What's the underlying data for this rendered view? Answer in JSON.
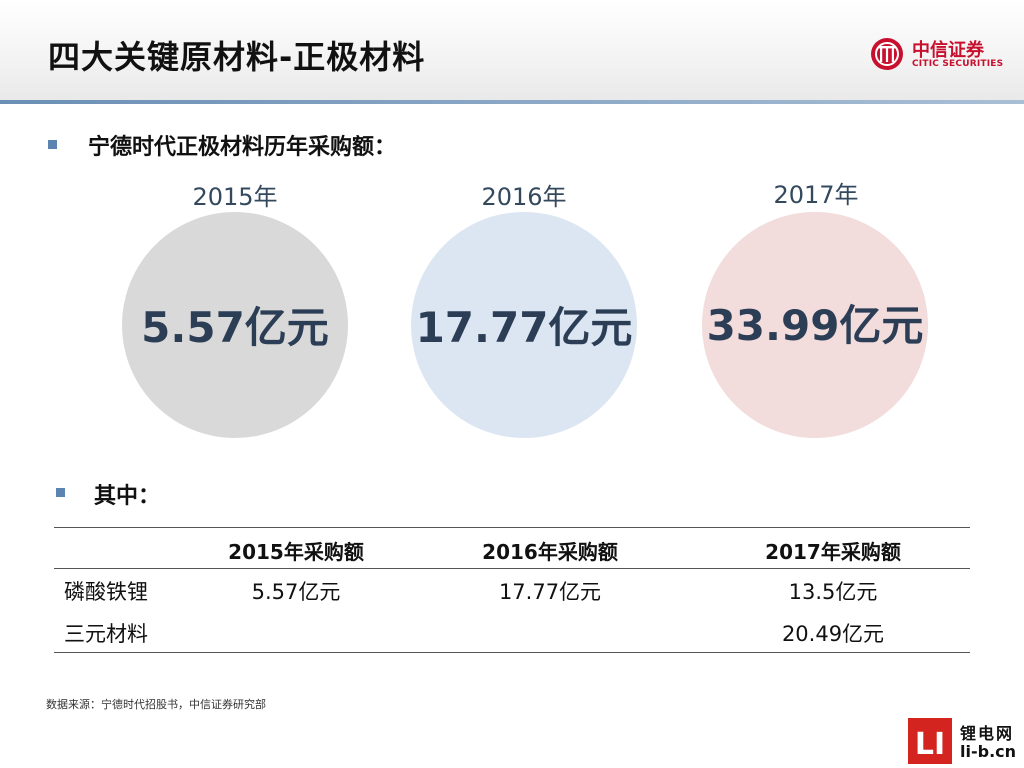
{
  "header": {
    "title": "四大关键原材料-正极材料",
    "logo": {
      "cn": "中信证券",
      "en": "CITIC SECURITIES"
    }
  },
  "colors": {
    "accent_line": "#6b8fb5",
    "bullet": "#5b84b1",
    "logo_red": "#c8102e",
    "circle_2015": "#d9d9d9",
    "circle_2016": "#dce6f2",
    "circle_2017": "#f2dcdc"
  },
  "section1": {
    "heading": "宁德时代正极材料历年采购额：",
    "circles": [
      {
        "year": "2015年",
        "value": "5.57亿元"
      },
      {
        "year": "2016年",
        "value": "17.77亿元"
      },
      {
        "year": "2017年",
        "value": "33.99亿元"
      }
    ]
  },
  "section2": {
    "heading": "其中：",
    "table": {
      "columns": [
        "",
        "2015年采购额",
        "2016年采购额",
        "2017年采购额"
      ],
      "rows": [
        {
          "label": "磷酸铁锂",
          "cells": [
            "5.57亿元",
            "17.77亿元",
            "13.5亿元"
          ]
        },
        {
          "label": "三元材料",
          "cells": [
            "",
            "",
            "20.49亿元"
          ]
        }
      ]
    }
  },
  "footer": {
    "source": "数据来源：宁德时代招股书，中信证券研究部"
  },
  "watermark": {
    "mark": "LI",
    "cn": "锂电网",
    "en": "li-b.cn"
  }
}
